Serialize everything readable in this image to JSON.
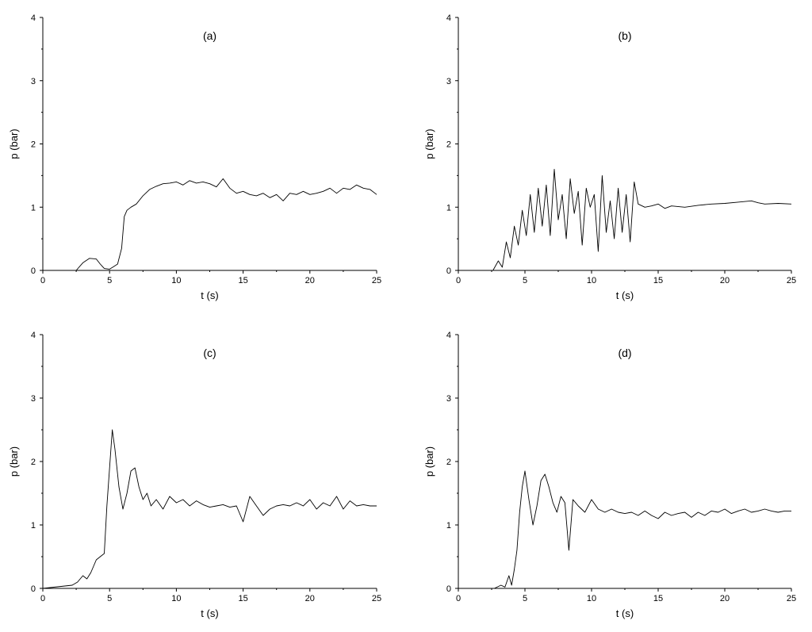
{
  "chart_data": [
    {
      "type": "line",
      "panel_label": "(a)",
      "xlabel": "t (s)",
      "ylabel": "p (bar)",
      "xlim": [
        0,
        25
      ],
      "ylim": [
        0,
        4
      ],
      "xticks": [
        0,
        5,
        10,
        15,
        20,
        25
      ],
      "yticks": [
        0,
        1,
        2,
        3,
        4
      ],
      "line_color": "#000000",
      "series": [
        {
          "x": [
            0,
            2.5,
            3.0,
            3.5,
            4.0,
            4.3,
            4.6,
            5.0,
            5.3,
            5.6,
            5.9,
            6.1,
            6.3,
            6.6,
            7.0,
            7.5,
            8.0,
            8.5,
            9.0,
            9.5,
            10.0,
            10.5,
            11.0,
            11.5,
            12.0,
            12.5,
            13.0,
            13.5,
            14.0,
            14.5,
            15.0,
            15.5,
            16.0,
            16.5,
            17.0,
            17.5,
            18.0,
            18.5,
            19.0,
            19.5,
            20.0,
            20.5,
            21.0,
            21.5,
            22.0,
            22.5,
            23.0,
            23.5,
            24.0,
            24.5,
            25.0
          ],
          "y": [
            0,
            0,
            0.12,
            0.19,
            0.18,
            0.1,
            0.03,
            0.02,
            0.06,
            0.1,
            0.35,
            0.85,
            0.95,
            1.0,
            1.05,
            1.18,
            1.28,
            1.33,
            1.37,
            1.38,
            1.4,
            1.35,
            1.42,
            1.38,
            1.4,
            1.37,
            1.32,
            1.45,
            1.3,
            1.22,
            1.25,
            1.2,
            1.18,
            1.22,
            1.15,
            1.2,
            1.1,
            1.22,
            1.2,
            1.25,
            1.2,
            1.22,
            1.25,
            1.3,
            1.22,
            1.3,
            1.28,
            1.35,
            1.3,
            1.28,
            1.2
          ]
        }
      ]
    },
    {
      "type": "line",
      "panel_label": "(b)",
      "xlabel": "t (s)",
      "ylabel": "p (bar)",
      "xlim": [
        0,
        25
      ],
      "ylim": [
        0,
        4
      ],
      "xticks": [
        0,
        5,
        10,
        15,
        20,
        25
      ],
      "yticks": [
        0,
        1,
        2,
        3,
        4
      ],
      "line_color": "#000000",
      "series": [
        {
          "x": [
            0,
            2.6,
            3.0,
            3.3,
            3.6,
            3.9,
            4.2,
            4.5,
            4.8,
            5.1,
            5.4,
            5.7,
            6.0,
            6.3,
            6.6,
            6.9,
            7.2,
            7.5,
            7.8,
            8.1,
            8.4,
            8.7,
            9.0,
            9.3,
            9.6,
            9.9,
            10.2,
            10.5,
            10.8,
            11.1,
            11.4,
            11.7,
            12.0,
            12.3,
            12.6,
            12.9,
            13.2,
            13.5,
            14.0,
            14.5,
            15.0,
            15.5,
            16.0,
            17.0,
            18.0,
            19.0,
            20.0,
            21.0,
            22.0,
            22.5,
            23.0,
            24.0,
            25.0
          ],
          "y": [
            0,
            0,
            0.15,
            0.05,
            0.45,
            0.2,
            0.7,
            0.4,
            0.95,
            0.55,
            1.2,
            0.6,
            1.3,
            0.7,
            1.35,
            0.55,
            1.6,
            0.8,
            1.2,
            0.5,
            1.45,
            0.9,
            1.25,
            0.4,
            1.3,
            1.0,
            1.2,
            0.3,
            1.5,
            0.6,
            1.1,
            0.5,
            1.3,
            0.6,
            1.2,
            0.45,
            1.4,
            1.05,
            1.0,
            1.02,
            1.05,
            0.98,
            1.02,
            1.0,
            1.03,
            1.05,
            1.06,
            1.08,
            1.1,
            1.07,
            1.05,
            1.06,
            1.05
          ]
        }
      ]
    },
    {
      "type": "line",
      "panel_label": "(c)",
      "xlabel": "t (s)",
      "ylabel": "p (bar)",
      "xlim": [
        0,
        25
      ],
      "ylim": [
        0,
        4
      ],
      "xticks": [
        0,
        5,
        10,
        15,
        20,
        25
      ],
      "yticks": [
        0,
        1,
        2,
        3,
        4
      ],
      "line_color": "#000000",
      "series": [
        {
          "x": [
            0,
            2.2,
            2.6,
            3.0,
            3.3,
            3.6,
            4.0,
            4.3,
            4.6,
            4.8,
            5.0,
            5.2,
            5.4,
            5.7,
            6.0,
            6.3,
            6.6,
            6.9,
            7.2,
            7.5,
            7.8,
            8.1,
            8.5,
            9.0,
            9.5,
            10.0,
            10.5,
            11.0,
            11.5,
            12.0,
            12.5,
            13.0,
            13.5,
            14.0,
            14.5,
            15.0,
            15.5,
            16.0,
            16.5,
            17.0,
            17.5,
            18.0,
            18.5,
            19.0,
            19.5,
            20.0,
            20.5,
            21.0,
            21.5,
            22.0,
            22.5,
            23.0,
            23.5,
            24.0,
            24.5,
            25.0
          ],
          "y": [
            0,
            0.05,
            0.1,
            0.2,
            0.15,
            0.25,
            0.45,
            0.5,
            0.55,
            1.3,
            1.9,
            2.5,
            2.2,
            1.6,
            1.25,
            1.5,
            1.85,
            1.9,
            1.6,
            1.4,
            1.5,
            1.3,
            1.4,
            1.25,
            1.45,
            1.35,
            1.4,
            1.3,
            1.38,
            1.32,
            1.28,
            1.3,
            1.32,
            1.28,
            1.3,
            1.05,
            1.45,
            1.3,
            1.15,
            1.25,
            1.3,
            1.32,
            1.3,
            1.35,
            1.3,
            1.4,
            1.25,
            1.35,
            1.3,
            1.45,
            1.25,
            1.38,
            1.3,
            1.32,
            1.3,
            1.3
          ]
        }
      ]
    },
    {
      "type": "line",
      "panel_label": "(d)",
      "xlabel": "t (s)",
      "ylabel": "p (bar)",
      "xlim": [
        0,
        25
      ],
      "ylim": [
        0,
        4
      ],
      "xticks": [
        0,
        5,
        10,
        15,
        20,
        25
      ],
      "yticks": [
        0,
        1,
        2,
        3,
        4
      ],
      "line_color": "#000000",
      "series": [
        {
          "x": [
            0,
            2.7,
            3.2,
            3.5,
            3.8,
            4.0,
            4.2,
            4.4,
            4.6,
            4.8,
            5.0,
            5.3,
            5.6,
            5.9,
            6.2,
            6.5,
            6.8,
            7.1,
            7.4,
            7.7,
            8.0,
            8.3,
            8.6,
            9.0,
            9.5,
            10.0,
            10.5,
            11.0,
            11.5,
            12.0,
            12.5,
            13.0,
            13.5,
            14.0,
            14.5,
            15.0,
            15.5,
            16.0,
            16.5,
            17.0,
            17.5,
            18.0,
            18.5,
            19.0,
            19.5,
            20.0,
            20.5,
            21.0,
            21.5,
            22.0,
            22.5,
            23.0,
            23.5,
            24.0,
            24.5,
            25.0
          ],
          "y": [
            0,
            0,
            0.05,
            0.02,
            0.2,
            0.05,
            0.3,
            0.6,
            1.2,
            1.6,
            1.85,
            1.4,
            1.0,
            1.3,
            1.7,
            1.8,
            1.6,
            1.35,
            1.2,
            1.45,
            1.35,
            0.6,
            1.4,
            1.3,
            1.2,
            1.4,
            1.25,
            1.2,
            1.25,
            1.2,
            1.18,
            1.2,
            1.15,
            1.22,
            1.15,
            1.1,
            1.2,
            1.15,
            1.18,
            1.2,
            1.12,
            1.2,
            1.15,
            1.22,
            1.2,
            1.25,
            1.18,
            1.22,
            1.25,
            1.2,
            1.22,
            1.25,
            1.22,
            1.2,
            1.22,
            1.22
          ]
        }
      ]
    }
  ]
}
